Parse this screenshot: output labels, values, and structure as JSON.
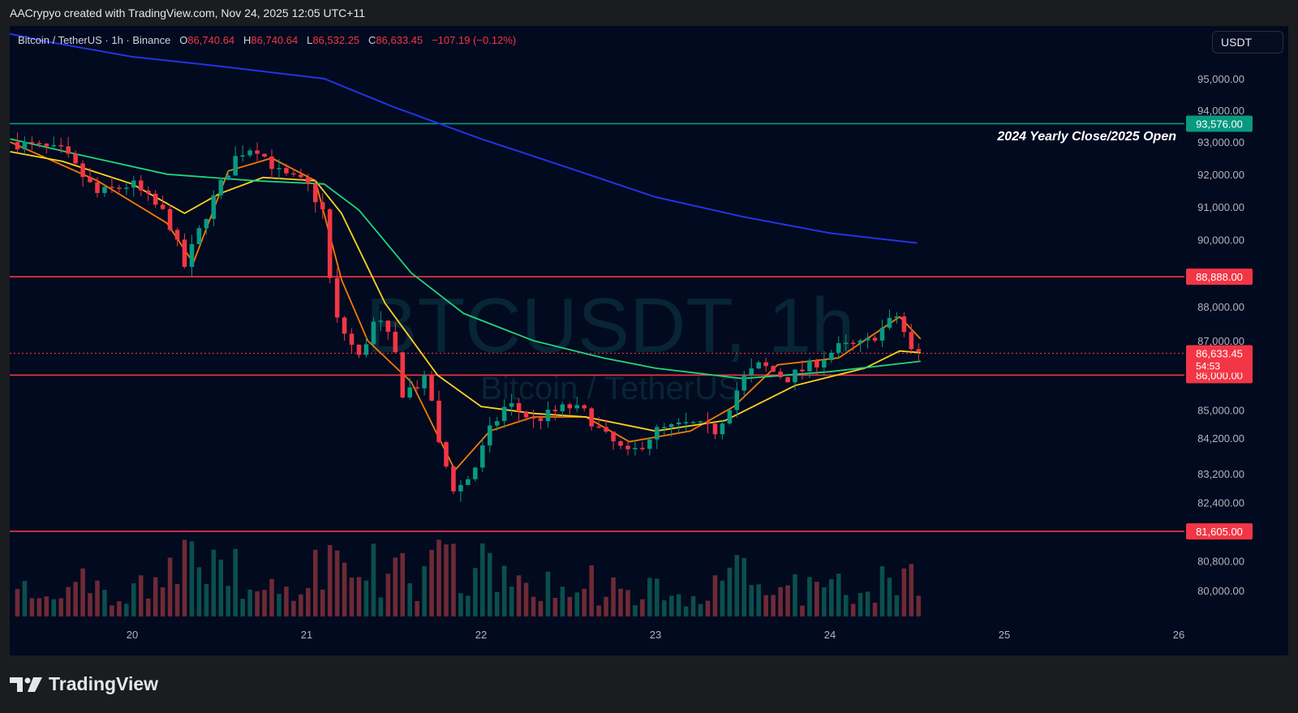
{
  "header": {
    "attribution": "AACrypyo created with TradingView.com, Nov 24, 2025 12:05 UTC+11"
  },
  "legend": {
    "symbol": "Bitcoin / TetherUS · 1h · Binance",
    "o_label": "O",
    "o": "86,740.64",
    "h_label": "H",
    "h": "86,740.64",
    "l_label": "L",
    "l": "86,532.25",
    "c_label": "C",
    "c": "86,633.45",
    "change": "−107.19 (−0.12%)"
  },
  "currency": "USDT",
  "watermark": {
    "ticker": "BTCUSDT, 1h",
    "name": "Bitcoin / TetherUS"
  },
  "annotation": "2024 Yearly Close/2025 Open",
  "brand": "TradingView",
  "colors": {
    "background": "#020a1f",
    "up": "#089981",
    "down": "#f23645",
    "ma_orange": "#f57c00",
    "ma_yellow": "#ffd21e",
    "ma_green": "#22d37a",
    "ma_blue": "#2235e6",
    "level_red": "#f23645",
    "level_teal": "#089981"
  },
  "chart_data": {
    "type": "candlestick",
    "timeframe": "1h",
    "x_ticks": [
      "20",
      "21",
      "22",
      "23",
      "24",
      "25",
      "26"
    ],
    "y_ticks": [
      "95,000.00",
      "94,000.00",
      "93,000.00",
      "92,000.00",
      "91,000.00",
      "90,000.00",
      "88,000.00",
      "87,000.00",
      "85,000.00",
      "84,200.00",
      "83,200.00",
      "82,400.00",
      "80,800.00",
      "80,000.00"
    ],
    "y_axis_scale": "log",
    "horizontal_levels": [
      {
        "value": 93576,
        "label": "93,576.00",
        "color": "teal"
      },
      {
        "value": 88888,
        "label": "88,888.00",
        "color": "red"
      },
      {
        "value": 86000,
        "label": "86,000.00",
        "color": "red"
      },
      {
        "value": 81605,
        "label": "81,605.00",
        "color": "red"
      }
    ],
    "current_price": {
      "value": 86633.45,
      "label": "86,633.45",
      "countdown": "54:53"
    },
    "price_anchors": [
      {
        "day": 19.3,
        "price": 93000
      },
      {
        "day": 19.6,
        "price": 92700
      },
      {
        "day": 19.8,
        "price": 91400
      },
      {
        "day": 20.0,
        "price": 91700
      },
      {
        "day": 20.2,
        "price": 90700
      },
      {
        "day": 20.3,
        "price": 89200
      },
      {
        "day": 20.45,
        "price": 91100
      },
      {
        "day": 20.6,
        "price": 92600
      },
      {
        "day": 20.7,
        "price": 92900
      },
      {
        "day": 20.85,
        "price": 92000
      },
      {
        "day": 21.0,
        "price": 91700
      },
      {
        "day": 21.1,
        "price": 90800
      },
      {
        "day": 21.15,
        "price": 87800
      },
      {
        "day": 21.3,
        "price": 86500
      },
      {
        "day": 21.4,
        "price": 87700
      },
      {
        "day": 21.5,
        "price": 86800
      },
      {
        "day": 21.55,
        "price": 85500
      },
      {
        "day": 21.7,
        "price": 85900
      },
      {
        "day": 21.75,
        "price": 84100
      },
      {
        "day": 21.85,
        "price": 82700
      },
      {
        "day": 21.95,
        "price": 83200
      },
      {
        "day": 22.05,
        "price": 84400
      },
      {
        "day": 22.15,
        "price": 85200
      },
      {
        "day": 22.3,
        "price": 84700
      },
      {
        "day": 22.5,
        "price": 85100
      },
      {
        "day": 22.6,
        "price": 84900
      },
      {
        "day": 22.7,
        "price": 84300
      },
      {
        "day": 22.85,
        "price": 83700
      },
      {
        "day": 23.0,
        "price": 84400
      },
      {
        "day": 23.2,
        "price": 84600
      },
      {
        "day": 23.35,
        "price": 84400
      },
      {
        "day": 23.5,
        "price": 85900
      },
      {
        "day": 23.6,
        "price": 86300
      },
      {
        "day": 23.75,
        "price": 85900
      },
      {
        "day": 23.9,
        "price": 86300
      },
      {
        "day": 24.05,
        "price": 86800
      },
      {
        "day": 24.2,
        "price": 86900
      },
      {
        "day": 24.4,
        "price": 87800
      },
      {
        "day": 24.45,
        "price": 86700
      },
      {
        "day": 24.52,
        "price": 86633
      }
    ],
    "moving_averages": [
      {
        "color": "orange",
        "points": [
          [
            19.3,
            93000
          ],
          [
            19.8,
            91800
          ],
          [
            20.2,
            90500
          ],
          [
            20.35,
            89300
          ],
          [
            20.55,
            92100
          ],
          [
            20.8,
            92500
          ],
          [
            21.05,
            91800
          ],
          [
            21.2,
            88800
          ],
          [
            21.35,
            87000
          ],
          [
            21.6,
            85800
          ],
          [
            21.85,
            83300
          ],
          [
            22.05,
            84400
          ],
          [
            22.3,
            84800
          ],
          [
            22.6,
            84800
          ],
          [
            22.85,
            84100
          ],
          [
            23.2,
            84400
          ],
          [
            23.45,
            85100
          ],
          [
            23.7,
            86300
          ],
          [
            24.05,
            86500
          ],
          [
            24.4,
            87700
          ],
          [
            24.52,
            87050
          ]
        ]
      },
      {
        "color": "yellow",
        "points": [
          [
            19.3,
            92700
          ],
          [
            19.6,
            92400
          ],
          [
            20.0,
            91700
          ],
          [
            20.3,
            90800
          ],
          [
            20.5,
            91400
          ],
          [
            20.75,
            91900
          ],
          [
            21.05,
            91800
          ],
          [
            21.2,
            90800
          ],
          [
            21.45,
            88100
          ],
          [
            21.75,
            86000
          ],
          [
            22.0,
            85100
          ],
          [
            22.3,
            84900
          ],
          [
            22.6,
            84800
          ],
          [
            23.0,
            84400
          ],
          [
            23.4,
            84700
          ],
          [
            23.8,
            85700
          ],
          [
            24.2,
            86200
          ],
          [
            24.4,
            86700
          ],
          [
            24.52,
            86650
          ]
        ]
      },
      {
        "color": "green",
        "points": [
          [
            19.3,
            93100
          ],
          [
            19.7,
            92600
          ],
          [
            20.2,
            92000
          ],
          [
            20.7,
            91800
          ],
          [
            21.1,
            91700
          ],
          [
            21.3,
            90900
          ],
          [
            21.6,
            89000
          ],
          [
            21.9,
            87800
          ],
          [
            22.3,
            87000
          ],
          [
            22.7,
            86500
          ],
          [
            23.0,
            86200
          ],
          [
            23.5,
            85900
          ],
          [
            24.0,
            86100
          ],
          [
            24.52,
            86400
          ]
        ]
      },
      {
        "color": "blue",
        "points": [
          [
            19.0,
            96800
          ],
          [
            19.5,
            96200
          ],
          [
            20.0,
            95700
          ],
          [
            20.5,
            95400
          ],
          [
            21.1,
            95000
          ],
          [
            21.5,
            94100
          ],
          [
            22.0,
            93100
          ],
          [
            22.5,
            92200
          ],
          [
            23.0,
            91300
          ],
          [
            23.5,
            90700
          ],
          [
            24.0,
            90200
          ],
          [
            24.5,
            89900
          ]
        ]
      }
    ]
  }
}
